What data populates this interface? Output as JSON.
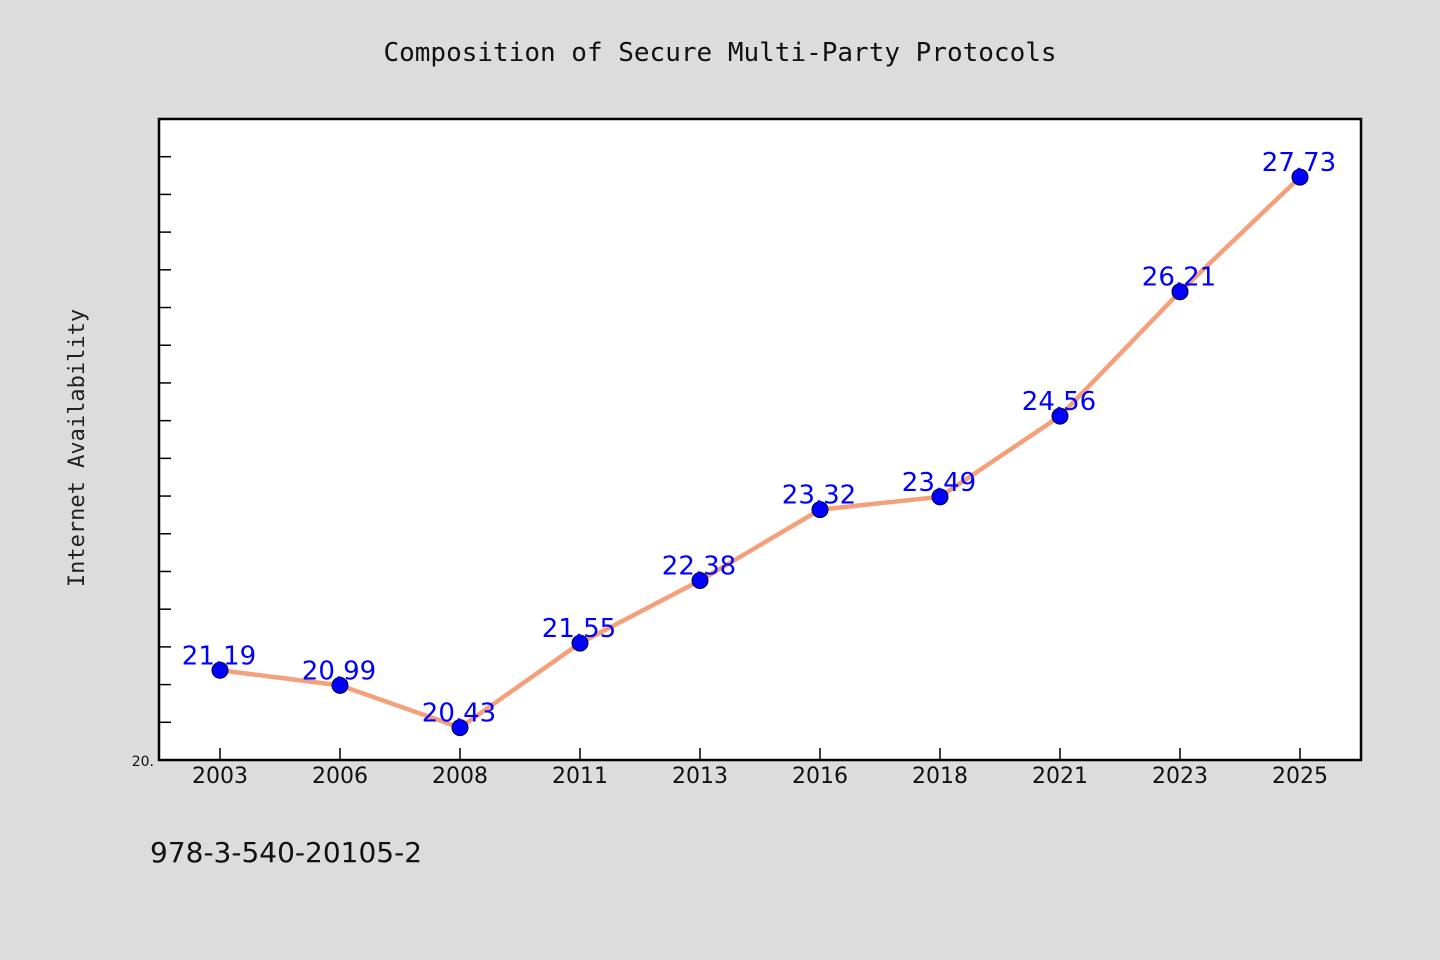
{
  "chart_data": {
    "type": "line",
    "title": "Composition of Secure Multi-Party Protocols",
    "ylabel": "Internet Availability",
    "xlabel": "",
    "categories": [
      "2003",
      "2006",
      "2008",
      "2011",
      "2013",
      "2016",
      "2018",
      "2021",
      "2023",
      "2025"
    ],
    "series": [
      {
        "values": [
          21.19,
          20.99,
          20.43,
          21.55,
          22.38,
          23.32,
          23.49,
          24.56,
          26.21,
          27.73
        ],
        "line_color": "#f4a07a",
        "marker_color": "#0000ff"
      }
    ],
    "ylim": [
      20,
      28.5
    ],
    "y_tick_labels": [
      "20."
    ],
    "data_labels": [
      "21.19",
      "20.99",
      "20.43",
      "21.55",
      "22.38",
      "23.32",
      "23.49",
      "24.56",
      "26.21",
      "27.73"
    ],
    "grid": false,
    "legend": "none"
  },
  "footer": {
    "isbn": "978-3-540-20105-2"
  },
  "colors": {
    "background": "#dcdcdc",
    "plot_background": "#ffffff",
    "line": "#f4a07a",
    "marker": "#0000ff",
    "data_label": "#0000ff"
  }
}
